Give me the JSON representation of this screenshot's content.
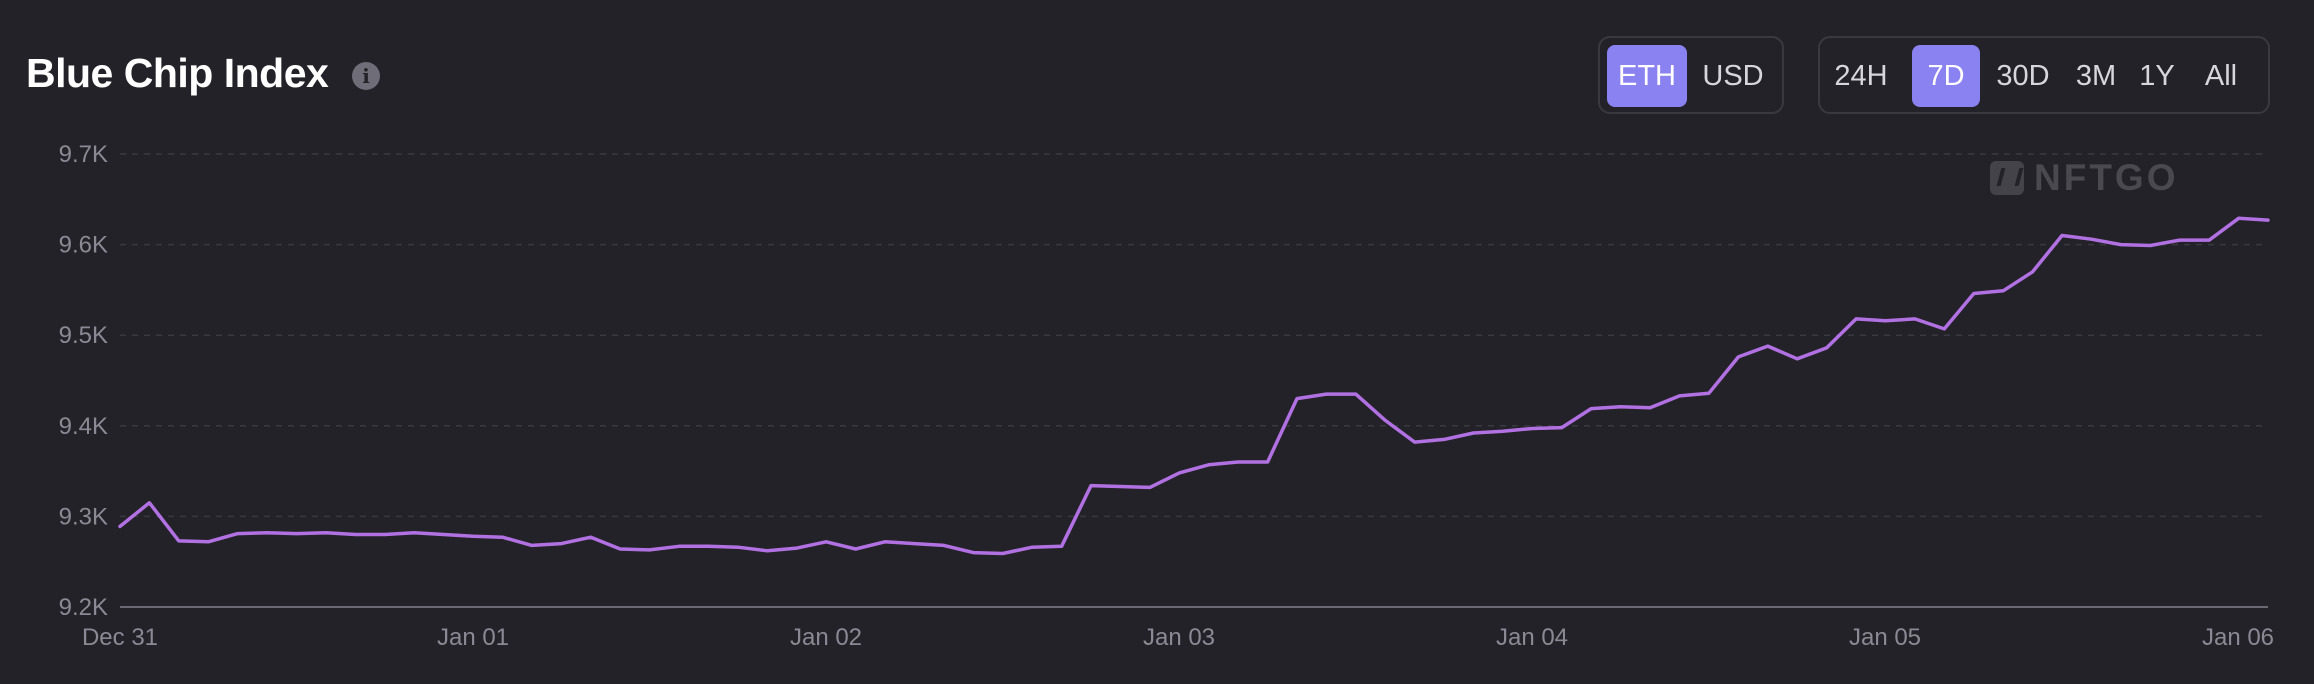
{
  "header": {
    "title": "Blue Chip Index",
    "info_icon": "info-icon",
    "currency_options": [
      {
        "label": "ETH",
        "active": true
      },
      {
        "label": "USD",
        "active": false
      }
    ],
    "range_options": [
      {
        "label": "24H",
        "active": false
      },
      {
        "label": "7D",
        "active": true
      },
      {
        "label": "30D",
        "active": false
      },
      {
        "label": "3M",
        "active": false
      },
      {
        "label": "1Y",
        "active": false
      },
      {
        "label": "All",
        "active": false
      }
    ]
  },
  "watermark": {
    "text": "NFTGO",
    "icon": "nftgo-logo-icon"
  },
  "colors": {
    "background": "#232228",
    "accent": "#8b82f2",
    "line": "#b271e2",
    "grid": "#3a3940",
    "axis_text": "#8b8a94"
  },
  "chart_data": {
    "type": "line",
    "title": "Blue Chip Index",
    "xlabel": "",
    "ylabel": "",
    "ylim": [
      9200,
      9700
    ],
    "y_ticks": [
      "9.2K",
      "9.3K",
      "9.4K",
      "9.5K",
      "9.6K",
      "9.7K"
    ],
    "x_ticks": [
      "Dec 31",
      "Jan 01",
      "Jan 02",
      "Jan 03",
      "Jan 04",
      "Jan 05",
      "Jan 06"
    ],
    "grid": true,
    "series": [
      {
        "values": [
          9289,
          9315,
          9273,
          9272,
          9281,
          9282,
          9281,
          9282,
          9280,
          9280,
          9282,
          9280,
          9278,
          9277,
          9268,
          9270,
          9277,
          9264,
          9263,
          9267,
          9267,
          9266,
          9262,
          9265,
          9272,
          9264,
          9272,
          9270,
          9268,
          9260,
          9259,
          9266,
          9267,
          9334,
          9333,
          9332,
          9348,
          9357,
          9360,
          9360,
          9430,
          9435,
          9435,
          9406,
          9382,
          9385,
          9392,
          9394,
          9397,
          9398,
          9419,
          9421,
          9420,
          9433,
          9436,
          9476,
          9488,
          9474,
          9486,
          9518,
          9516,
          9518,
          9507,
          9546,
          9549,
          9570,
          9610,
          9606,
          9600,
          9599,
          9605,
          9605,
          9629,
          9627
        ]
      }
    ]
  }
}
